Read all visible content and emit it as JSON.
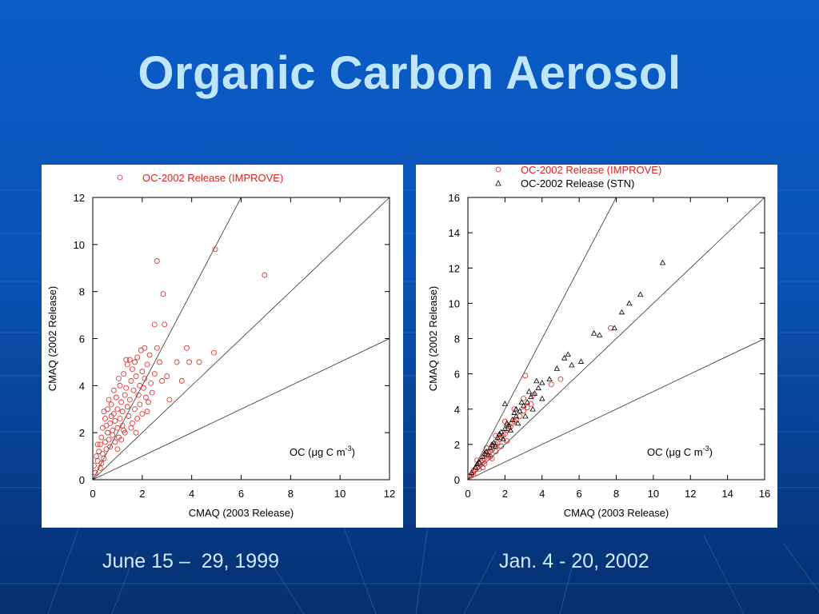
{
  "slide": {
    "title": "Organic Carbon Aerosol",
    "captions": [
      "June 15 –  29, 1999",
      "Jan. 4 - 20, 2002"
    ]
  },
  "colors": {
    "background": "#0a5cc9",
    "title": "#bfe6ff",
    "improve_series": "#e0201c",
    "stn_series": "#000000"
  },
  "chart_data": [
    {
      "type": "scatter",
      "title": "",
      "xlabel": "CMAQ (2003 Release)",
      "ylabel": "CMAQ (2002 Release)",
      "annotation": "OC (μg C m-3)",
      "xlim": [
        0,
        12
      ],
      "ylim": [
        0,
        12
      ],
      "xticks": [
        "0",
        "2",
        "4",
        "6",
        "8",
        "10",
        "12"
      ],
      "yticks": [
        "0",
        "2",
        "4",
        "6",
        "8",
        "10",
        "12"
      ],
      "legend_position": "top",
      "reference_lines": [
        2,
        1,
        0.5
      ],
      "series": [
        {
          "name": "OC-2002 Release (IMPROVE)",
          "marker": "circle",
          "color": "#e0201c",
          "points": [
            [
              0.05,
              0.6
            ],
            [
              0.1,
              0.3
            ],
            [
              0.15,
              1.0
            ],
            [
              0.2,
              0.8
            ],
            [
              0.25,
              1.2
            ],
            [
              0.3,
              0.5
            ],
            [
              0.3,
              1.5
            ],
            [
              0.35,
              1.8
            ],
            [
              0.4,
              1.1
            ],
            [
              0.4,
              2.2
            ],
            [
              0.45,
              0.9
            ],
            [
              0.5,
              1.6
            ],
            [
              0.5,
              2.6
            ],
            [
              0.55,
              1.3
            ],
            [
              0.6,
              2.0
            ],
            [
              0.6,
              3.0
            ],
            [
              0.65,
              1.7
            ],
            [
              0.7,
              2.4
            ],
            [
              0.7,
              1.4
            ],
            [
              0.75,
              3.2
            ],
            [
              0.8,
              2.1
            ],
            [
              0.8,
              1.9
            ],
            [
              0.85,
              2.8
            ],
            [
              0.9,
              2.5
            ],
            [
              0.9,
              1.6
            ],
            [
              0.95,
              3.5
            ],
            [
              1.0,
              2.2
            ],
            [
              1.0,
              3.0
            ],
            [
              1.05,
              1.8
            ],
            [
              1.1,
              2.6
            ],
            [
              1.1,
              4.0
            ],
            [
              1.15,
              3.3
            ],
            [
              1.2,
              2.9
            ],
            [
              1.2,
              2.3
            ],
            [
              1.25,
              4.5
            ],
            [
              1.3,
              3.6
            ],
            [
              1.3,
              2.0
            ],
            [
              1.35,
              3.9
            ],
            [
              1.4,
              3.1
            ],
            [
              1.4,
              4.9
            ],
            [
              1.45,
              2.7
            ],
            [
              1.5,
              5.1
            ],
            [
              1.5,
              3.4
            ],
            [
              1.55,
              4.2
            ],
            [
              1.6,
              2.4
            ],
            [
              1.6,
              4.7
            ],
            [
              1.65,
              3.8
            ],
            [
              1.7,
              5.0
            ],
            [
              1.7,
              3.0
            ],
            [
              1.75,
              4.4
            ],
            [
              1.8,
              2.6
            ],
            [
              1.8,
              5.2
            ],
            [
              1.85,
              3.6
            ],
            [
              1.9,
              4.0
            ],
            [
              1.9,
              3.2
            ],
            [
              1.95,
              5.5
            ],
            [
              2.0,
              4.6
            ],
            [
              2.0,
              2.8
            ],
            [
              2.05,
              3.9
            ],
            [
              2.1,
              5.6
            ],
            [
              2.1,
              4.3
            ],
            [
              2.15,
              3.5
            ],
            [
              2.2,
              4.9
            ],
            [
              2.25,
              3.3
            ],
            [
              2.3,
              5.3
            ],
            [
              2.35,
              4.1
            ],
            [
              2.4,
              3.7
            ],
            [
              2.5,
              6.6
            ],
            [
              2.5,
              4.5
            ],
            [
              2.6,
              9.3
            ],
            [
              2.6,
              5.6
            ],
            [
              2.7,
              5.0
            ],
            [
              2.8,
              4.2
            ],
            [
              2.85,
              7.9
            ],
            [
              2.9,
              6.6
            ],
            [
              3.0,
              4.4
            ],
            [
              3.1,
              3.4
            ],
            [
              3.4,
              5.0
            ],
            [
              3.6,
              4.2
            ],
            [
              3.8,
              5.6
            ],
            [
              3.9,
              5.0
            ],
            [
              4.3,
              5.0
            ],
            [
              4.9,
              5.4
            ],
            [
              4.95,
              9.8
            ],
            [
              6.95,
              8.7
            ],
            [
              0.2,
              1.5
            ],
            [
              0.35,
              0.7
            ],
            [
              0.55,
              2.3
            ],
            [
              0.75,
              2.7
            ],
            [
              1.0,
              1.3
            ],
            [
              1.25,
              2.1
            ],
            [
              0.65,
              3.4
            ],
            [
              0.85,
              3.8
            ],
            [
              1.05,
              4.3
            ],
            [
              1.35,
              5.1
            ],
            [
              1.15,
              1.7
            ],
            [
              0.45,
              2.9
            ],
            [
              1.55,
              2.2
            ],
            [
              1.75,
              2.0
            ],
            [
              2.2,
              2.9
            ]
          ]
        }
      ]
    },
    {
      "type": "scatter",
      "title": "",
      "xlabel": "CMAQ (2003 Release)",
      "ylabel": "CMAQ (2002 Release)",
      "annotation": "OC (μg C m-3)",
      "xlim": [
        0,
        16
      ],
      "ylim": [
        0,
        16
      ],
      "xticks": [
        "0",
        "2",
        "4",
        "6",
        "8",
        "10",
        "12",
        "14",
        "16"
      ],
      "yticks": [
        "0",
        "2",
        "4",
        "6",
        "8",
        "10",
        "12",
        "14",
        "16"
      ],
      "legend_position": "top",
      "reference_lines": [
        2,
        1,
        0.5
      ],
      "series": [
        {
          "name": "OC-2002 Release (IMPROVE)",
          "marker": "circle",
          "color": "#e0201c",
          "points": [
            [
              0.1,
              0.2
            ],
            [
              0.2,
              0.3
            ],
            [
              0.3,
              0.5
            ],
            [
              0.4,
              0.6
            ],
            [
              0.5,
              0.7
            ],
            [
              0.6,
              0.9
            ],
            [
              0.7,
              1.0
            ],
            [
              0.8,
              1.1
            ],
            [
              0.9,
              1.2
            ],
            [
              1.0,
              1.4
            ],
            [
              1.1,
              1.5
            ],
            [
              1.2,
              1.6
            ],
            [
              1.3,
              1.7
            ],
            [
              1.4,
              1.9
            ],
            [
              1.5,
              2.0
            ],
            [
              1.6,
              2.1
            ],
            [
              1.7,
              2.3
            ],
            [
              1.8,
              2.4
            ],
            [
              1.9,
              2.5
            ],
            [
              2.0,
              2.6
            ],
            [
              2.1,
              2.8
            ],
            [
              2.2,
              2.9
            ],
            [
              2.3,
              3.0
            ],
            [
              2.4,
              3.2
            ],
            [
              2.5,
              3.3
            ],
            [
              2.6,
              3.4
            ],
            [
              2.8,
              3.6
            ],
            [
              3.0,
              3.9
            ],
            [
              3.2,
              4.1
            ],
            [
              3.4,
              4.3
            ],
            [
              0.3,
              0.3
            ],
            [
              0.6,
              0.6
            ],
            [
              0.9,
              0.9
            ],
            [
              1.2,
              1.3
            ],
            [
              1.5,
              1.6
            ],
            [
              1.8,
              1.9
            ],
            [
              2.1,
              2.2
            ],
            [
              0.5,
              1.1
            ],
            [
              1.0,
              1.8
            ],
            [
              1.5,
              2.5
            ],
            [
              2.0,
              3.3
            ],
            [
              2.5,
              4.0
            ],
            [
              3.0,
              4.6
            ],
            [
              3.5,
              4.8
            ],
            [
              0.8,
              0.7
            ],
            [
              1.3,
              1.2
            ],
            [
              3.1,
              5.9
            ],
            [
              4.5,
              5.4
            ],
            [
              5.0,
              5.7
            ],
            [
              7.7,
              8.6
            ]
          ]
        },
        {
          "name": "OC-2002 Release (STN)",
          "marker": "triangle",
          "color": "#000000",
          "points": [
            [
              0.2,
              0.4
            ],
            [
              0.4,
              0.7
            ],
            [
              0.6,
              1.0
            ],
            [
              0.8,
              1.3
            ],
            [
              1.0,
              1.6
            ],
            [
              1.2,
              1.8
            ],
            [
              1.4,
              2.1
            ],
            [
              1.6,
              2.4
            ],
            [
              1.8,
              2.7
            ],
            [
              2.0,
              2.9
            ],
            [
              2.2,
              3.1
            ],
            [
              2.4,
              3.4
            ],
            [
              2.6,
              3.6
            ],
            [
              2.8,
              3.9
            ],
            [
              3.0,
              4.2
            ],
            [
              3.2,
              4.4
            ],
            [
              3.4,
              4.7
            ],
            [
              3.6,
              4.9
            ],
            [
              3.8,
              5.2
            ],
            [
              4.0,
              5.5
            ],
            [
              0.5,
              0.9
            ],
            [
              0.9,
              1.5
            ],
            [
              1.3,
              2.0
            ],
            [
              1.7,
              2.6
            ],
            [
              2.1,
              3.2
            ],
            [
              2.5,
              3.8
            ],
            [
              2.9,
              4.4
            ],
            [
              3.3,
              5.0
            ],
            [
              3.7,
              5.6
            ],
            [
              1.1,
              1.4
            ],
            [
              1.5,
              1.9
            ],
            [
              1.9,
              2.3
            ],
            [
              2.3,
              2.8
            ],
            [
              2.7,
              3.2
            ],
            [
              3.1,
              3.6
            ],
            [
              2.0,
              4.3
            ],
            [
              2.6,
              4.0
            ],
            [
              3.5,
              4.0
            ],
            [
              4.0,
              4.6
            ],
            [
              4.4,
              5.7
            ],
            [
              4.8,
              6.3
            ],
            [
              5.2,
              6.9
            ],
            [
              5.4,
              7.1
            ],
            [
              5.6,
              6.5
            ],
            [
              6.1,
              6.7
            ],
            [
              6.8,
              8.3
            ],
            [
              7.1,
              8.2
            ],
            [
              7.9,
              8.6
            ],
            [
              8.3,
              9.5
            ],
            [
              8.7,
              10.0
            ],
            [
              9.3,
              10.5
            ],
            [
              10.5,
              12.3
            ]
          ]
        }
      ]
    }
  ]
}
